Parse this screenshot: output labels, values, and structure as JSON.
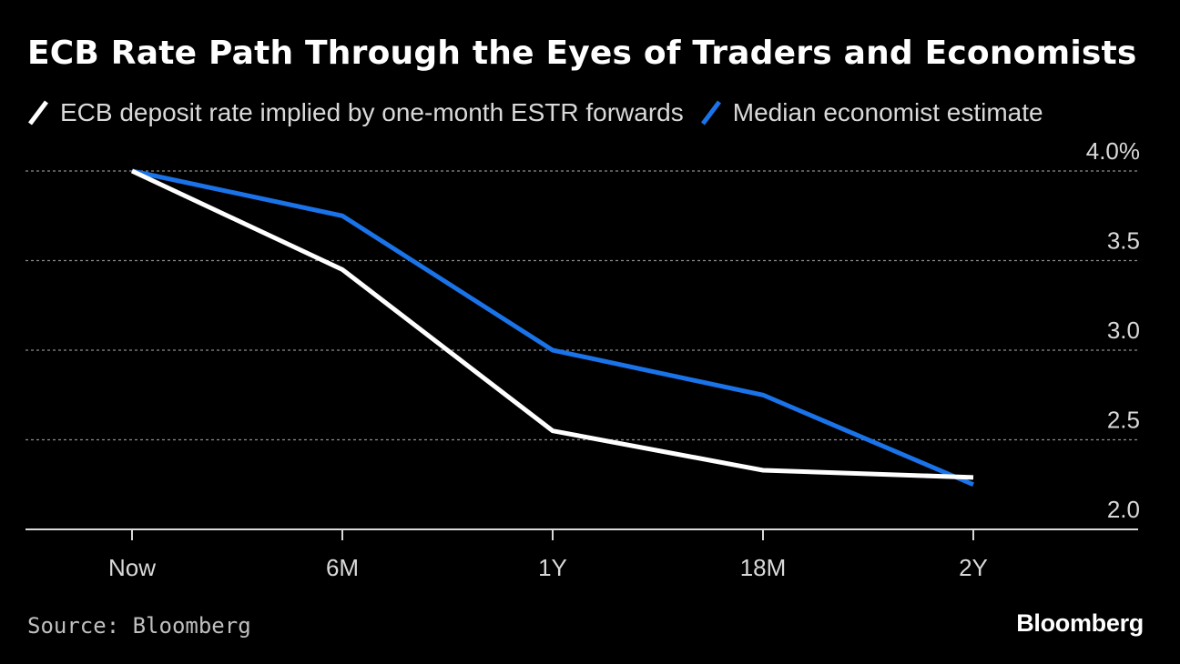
{
  "chart_data": {
    "type": "line",
    "title": "ECB Rate Path Through the Eyes of Traders and Economists",
    "categories": [
      "Now",
      "6M",
      "1Y",
      "18M",
      "2Y"
    ],
    "series": [
      {
        "name": "ECB deposit rate implied by one-month ESTR forwards",
        "color": "#ffffff",
        "values": [
          4.0,
          3.45,
          2.55,
          2.33,
          2.29
        ]
      },
      {
        "name": "Median economist estimate",
        "color": "#1a73e8",
        "values": [
          4.0,
          3.75,
          3.0,
          2.75,
          2.25
        ]
      }
    ],
    "yticks": [
      "4.0%",
      "3.5",
      "3.0",
      "2.5",
      "2.0"
    ],
    "ytick_values": [
      4.0,
      3.5,
      3.0,
      2.5,
      2.0
    ],
    "ylim": [
      2.0,
      4.0
    ],
    "grid": true,
    "legend_position": "top-left",
    "source": "Source: Bloomberg",
    "brand": "Bloomberg"
  }
}
